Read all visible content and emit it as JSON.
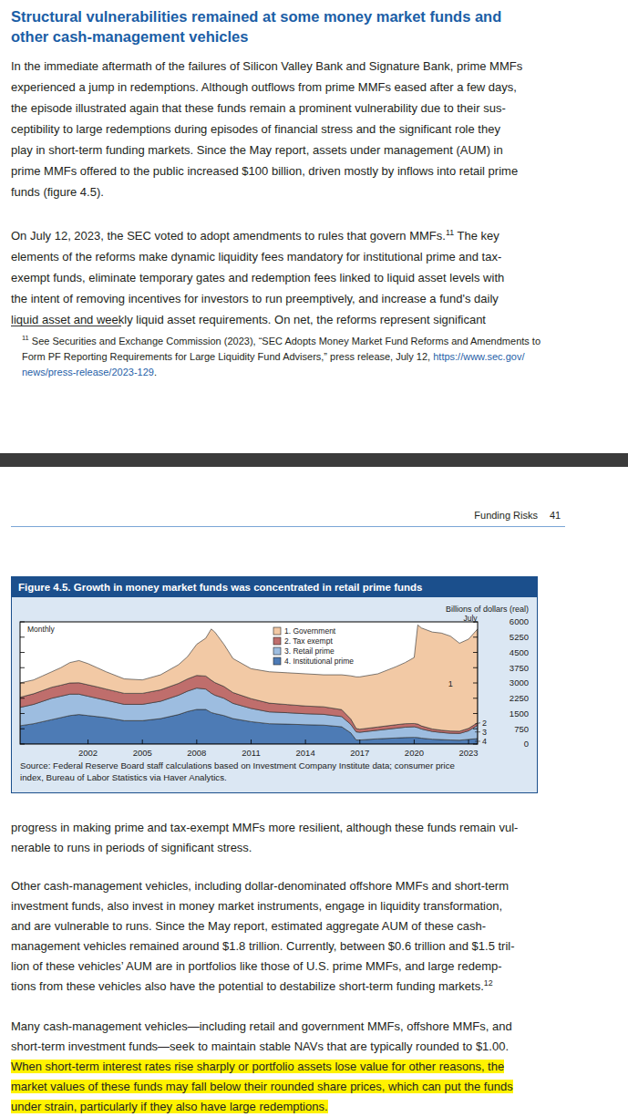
{
  "page1": {
    "heading": [
      "Structural vulnerabilities remained at some money market funds and",
      "other cash-management vehicles"
    ],
    "paragraphs": [
      [
        "In the immediate aftermath of the failures of Silicon Valley Bank and Signature Bank, prime MMFs",
        "experienced a jump in redemptions. Although outflows from prime MMFs eased after a few days,",
        "the episode illustrated again that these funds remain a prominent vulnerability due to their sus-",
        "ceptibility to large redemptions during episodes of financial stress and the significant role they",
        "play in short-term funding markets. Since the May report, assets under management (AUM) in",
        "prime MMFs offered to the public increased $100 billion, driven mostly by inflows into retail prime",
        "funds (figure 4.5)."
      ],
      [
        [
          {
            "text": "On July 12, 2023, the SEC voted to adopt amendments to rules that govern MMFs."
          },
          {
            "text": "11",
            "sup": true
          },
          {
            "text": " The key"
          }
        ],
        "elements of the reforms make dynamic liquidity fees mandatory for institutional prime and tax-",
        "exempt funds, eliminate temporary gates and redemption fees linked to liquid asset levels with",
        "the intent of removing incentives for investors to run preemptively, and increase a fund's daily",
        "liquid asset and weekly liquid asset requirements. On net, the reforms represent significant"
      ]
    ],
    "footnote": [
      [
        {
          "text": "11",
          "sup": true
        },
        {
          "text": " See Securities and Exchange Commission (2023), “SEC Adopts Money Market Fund Reforms and Amendments to"
        }
      ],
      [
        {
          "text": "Form PF Reporting Requirements for Large Liquidity Fund Advisers,” press release, July 12, "
        },
        {
          "text": "https://www.sec.gov/",
          "link": true
        }
      ],
      [
        {
          "text": "news/press-release/2023-129",
          "link": true
        },
        {
          "text": "."
        }
      ]
    ]
  },
  "page2": {
    "running_header": {
      "section": "Funding Risks",
      "page": 41
    },
    "paragraphs": [
      [
        "progress in making prime and tax-exempt MMFs more resilient, although these funds remain vul-",
        "nerable to runs in periods of significant stress."
      ],
      [
        "Other cash-management vehicles, including dollar-denominated offshore MMFs and short-term",
        "investment funds, also invest in money market instruments, engage in liquidity transformation,",
        "and are vulnerable to runs. Since the May report, estimated aggregate AUM of these cash-",
        "management vehicles remained around $1.8 trillion. Currently, between $0.6 trillion and $1.5 tril-",
        "lion of these vehicles’ AUM are in portfolios like those of U.S. prime MMFs, and large redemp-",
        [
          {
            "text": "tions from these vehicles also have the potential to destabilize short-term funding markets."
          },
          {
            "text": "12",
            "sup": true
          }
        ]
      ],
      [
        "Many cash-management vehicles—including retail and government MMFs, offshore MMFs, and",
        "short-term investment funds—seek to maintain stable NAVs that are typically rounded to $1.00.",
        [
          {
            "text": "When short-term interest rates rise sharply or portfolio assets lose value for other reasons, the",
            "highlight": true
          }
        ],
        [
          {
            "text": "market values of these funds may fall below their rounded share prices, which can put the funds",
            "highlight": true
          }
        ],
        [
          {
            "text": "under strain, particularly if they also have large redemptions.",
            "highlight": true
          }
        ]
      ]
    ]
  },
  "chart_data": {
    "type": "area",
    "stacked": true,
    "title": "Figure 4.5. Growth in money market funds was concentrated in retail prime funds",
    "subtitle": "Monthly",
    "ylabel": "Billions of dollars (real)",
    "annotation": "July",
    "source": [
      "Source: Federal Reserve Board staff calculations based on Investment Company Institute data; consumer price",
      "index, Bureau of Labor Statistics via Haver Analytics."
    ],
    "x": [
      1998.25,
      1999,
      1999.5,
      2000,
      2000.5,
      2001,
      2001.5,
      2002,
      2002.5,
      2003,
      2004,
      2005,
      2006,
      2007,
      2007.5,
      2008,
      2008.5,
      2008.8,
      2009,
      2009.5,
      2010,
      2011,
      2012,
      2013,
      2014,
      2015,
      2016,
      2016.5,
      2016.8,
      2017,
      2018,
      2019,
      2019.5,
      2020,
      2020.2,
      2020.4,
      2021,
      2021.5,
      2022,
      2022.5,
      2023,
      2023.5
    ],
    "xlim": [
      1998.25,
      2023.5
    ],
    "xticks": [
      2002,
      2005,
      2008,
      2011,
      2014,
      2017,
      2020,
      2023
    ],
    "ylim": [
      0,
      6000
    ],
    "yticks": [
      0,
      750,
      1500,
      2250,
      3000,
      3750,
      4500,
      5250,
      6000
    ],
    "grid": false,
    "legend": "top",
    "series": [
      {
        "name": "1. Government",
        "label": "1",
        "color": "#f2c9a5",
        "values": [
          700,
          680,
          720,
          760,
          860,
          1000,
          1090,
          1040,
          940,
          850,
          710,
          660,
          740,
          920,
          1100,
          1530,
          1860,
          2510,
          2480,
          2070,
          1670,
          1470,
          1540,
          1560,
          1580,
          1570,
          1710,
          2120,
          2540,
          2570,
          2610,
          2850,
          3000,
          3240,
          4870,
          4810,
          4760,
          4770,
          4660,
          4320,
          4380,
          4600
        ]
      },
      {
        "name": "2. Tax exempt",
        "label": "2",
        "color": "#bf6e6c",
        "values": [
          500,
          520,
          530,
          540,
          540,
          550,
          560,
          560,
          560,
          550,
          540,
          540,
          560,
          580,
          600,
          620,
          640,
          640,
          620,
          580,
          530,
          480,
          430,
          400,
          380,
          370,
          340,
          260,
          160,
          150,
          160,
          170,
          170,
          160,
          170,
          150,
          120,
          110,
          110,
          110,
          120,
          130
        ]
      },
      {
        "name": "3. Retail prime",
        "label": "3",
        "color": "#9dbde0",
        "values": [
          900,
          950,
          1000,
          1050,
          1050,
          1050,
          1000,
          950,
          900,
          850,
          800,
          800,
          850,
          950,
          1000,
          1050,
          1000,
          950,
          900,
          850,
          750,
          650,
          580,
          560,
          540,
          530,
          500,
          420,
          400,
          380,
          420,
          480,
          510,
          520,
          490,
          450,
          380,
          350,
          330,
          330,
          420,
          650
        ]
      },
      {
        "name": "4. Institutional prime",
        "label": "4",
        "color": "#4d7bb5",
        "values": [
          900,
          1000,
          1100,
          1200,
          1300,
          1400,
          1450,
          1400,
          1350,
          1300,
          1150,
          1150,
          1250,
          1450,
          1600,
          1700,
          1700,
          1550,
          1500,
          1400,
          1250,
          1100,
          1000,
          980,
          950,
          930,
          850,
          550,
          200,
          200,
          260,
          300,
          320,
          330,
          320,
          290,
          240,
          220,
          200,
          190,
          230,
          270
        ]
      }
    ]
  }
}
